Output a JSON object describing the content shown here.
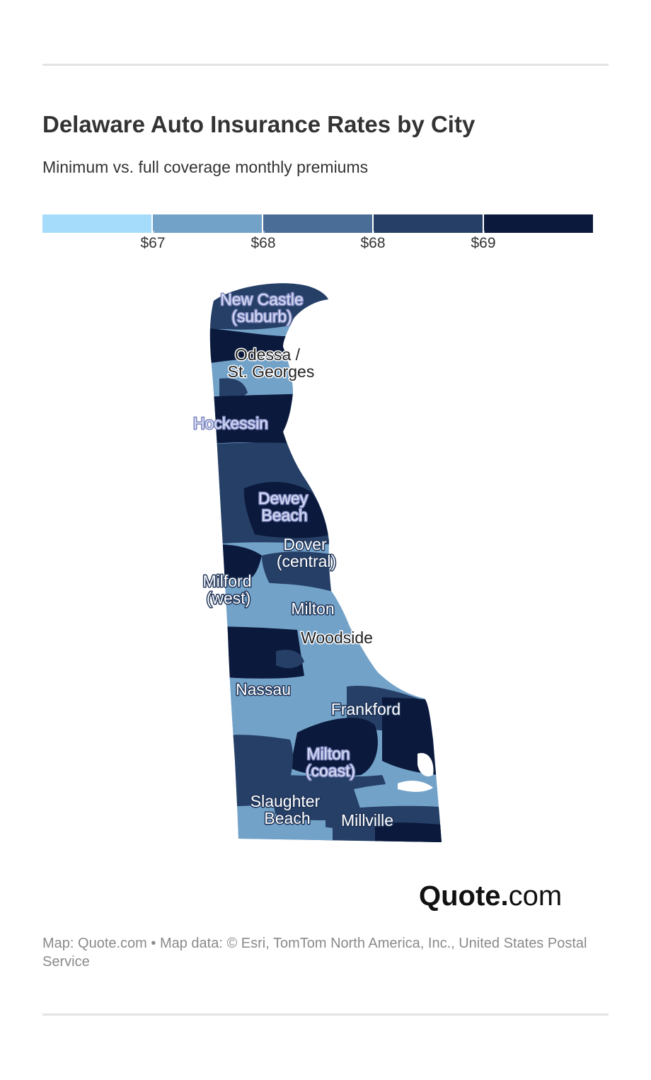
{
  "title": "Delaware Auto Insurance Rates by City",
  "subtitle": "Minimum vs. full coverage monthly premiums",
  "legend": {
    "colors": [
      "#a6dcfb",
      "#73a2c9",
      "#4a6d98",
      "#263f66",
      "#0b1a3c"
    ],
    "ticks": [
      "$67",
      "$68",
      "$68",
      "$69"
    ]
  },
  "map": {
    "region": "Delaware",
    "cities": [
      {
        "label_lines": [
          "New Castle",
          "(suburb)"
        ],
        "style": "blue"
      },
      {
        "label_lines": [
          "Odessa /",
          "St. Georges"
        ],
        "style": "dark"
      },
      {
        "label_lines": [
          "Hockessin"
        ],
        "style": "blue"
      },
      {
        "label_lines": [
          "Dewey",
          "Beach"
        ],
        "style": "blue"
      },
      {
        "label_lines": [
          "Dover",
          "(central)"
        ],
        "style": "light"
      },
      {
        "label_lines": [
          "Milford",
          "(west)"
        ],
        "style": "light"
      },
      {
        "label_lines": [
          "Milton"
        ],
        "style": "light"
      },
      {
        "label_lines": [
          "Woodside"
        ],
        "style": "dark"
      },
      {
        "label_lines": [
          "Nassau"
        ],
        "style": "light"
      },
      {
        "label_lines": [
          "Frankford"
        ],
        "style": "light"
      },
      {
        "label_lines": [
          "Milton",
          "(coast)"
        ],
        "style": "blue"
      },
      {
        "label_lines": [
          "Slaughter",
          "Beach"
        ],
        "style": "light"
      },
      {
        "label_lines": [
          "Millville"
        ],
        "style": "light"
      }
    ]
  },
  "brand": {
    "bold": "Quote",
    "dot": ".",
    "rest": "com"
  },
  "source": "Map: Quote.com • Map data: © Esri, TomTom North America, Inc., United States Postal Service"
}
